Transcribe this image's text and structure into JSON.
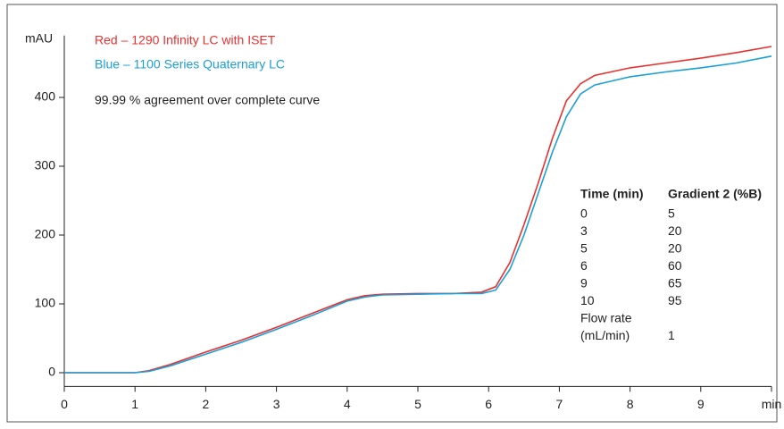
{
  "chart_data": {
    "type": "line",
    "y_label": "mAU",
    "annotations": [
      "Red – 1290 Infinity LC with ISET",
      "Blue – 1100 Series Quaternary LC",
      "99.99 % agreement over complete curve"
    ],
    "x": [
      0,
      0.5,
      1,
      1.2,
      1.5,
      2,
      2.5,
      3,
      3.5,
      4,
      4.25,
      4.5,
      5,
      5.5,
      5.9,
      6.1,
      6.3,
      6.5,
      6.7,
      6.9,
      7.1,
      7.3,
      7.5,
      8,
      8.5,
      9,
      9.5,
      10
    ],
    "series": [
      {
        "name": "Red – 1290 Infinity LC with ISET",
        "color": "#e8312f",
        "values": [
          0,
          0,
          0,
          3,
          12,
          30,
          47,
          66,
          86,
          106,
          112,
          114,
          115,
          115,
          117,
          125,
          160,
          215,
          275,
          340,
          395,
          420,
          432,
          443,
          450,
          457,
          465,
          474
        ]
      },
      {
        "name": "Blue – 1100 Series Quaternary LC",
        "color": "#1a9fd9",
        "values": [
          0,
          0,
          0,
          2,
          10,
          27,
          44,
          63,
          83,
          104,
          110,
          113,
          114,
          115,
          115,
          120,
          150,
          200,
          260,
          320,
          372,
          405,
          418,
          430,
          437,
          443,
          450,
          460
        ]
      }
    ],
    "xlim": [
      0,
      10
    ],
    "xticks": [
      0,
      1,
      2,
      3,
      4,
      5,
      6,
      7,
      8,
      9,
      {
        "value": 10,
        "label": "min"
      }
    ],
    "ylim": [
      -20,
      490
    ],
    "yticks": [
      0,
      100,
      200,
      300,
      400
    ],
    "table": {
      "columns": [
        "Time (min)",
        "Gradient 2 (%B)"
      ],
      "rows": [
        [
          0,
          5
        ],
        [
          3,
          20
        ],
        [
          5,
          20
        ],
        [
          6,
          60
        ],
        [
          9,
          65
        ],
        [
          10,
          95
        ]
      ],
      "flow_label": [
        "Flow  rate",
        "(mL/min)"
      ],
      "flow_value": 1
    }
  }
}
